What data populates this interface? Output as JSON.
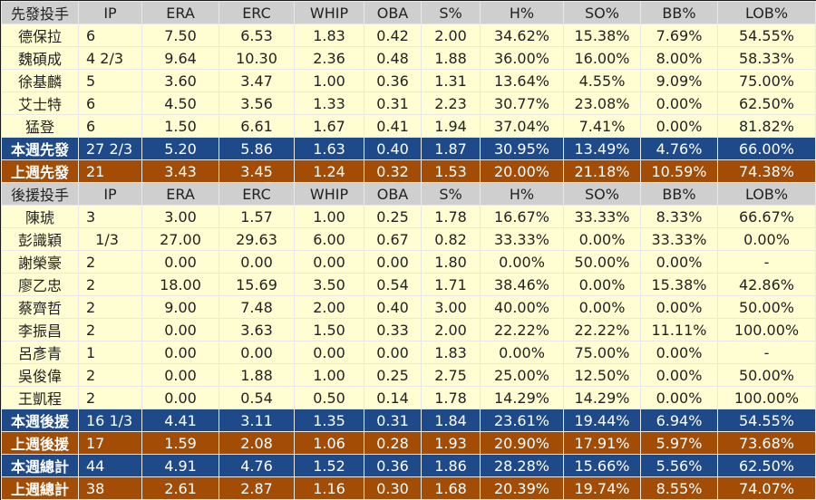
{
  "colors": {
    "header": "#cfcfcf",
    "row": "#fffed2",
    "this_week": "#1f4a8a",
    "last_week": "#a24c05"
  },
  "columns": [
    "IP",
    "ERA",
    "ERC",
    "WHIP",
    "OBA",
    "S%",
    "H%",
    "SO%",
    "BB%",
    "LOB%"
  ],
  "sections": [
    {
      "header": "先發投手",
      "rows": [
        {
          "type": "row",
          "cells": [
            "德保拉",
            "6",
            "7.50",
            "6.53",
            "1.83",
            "0.42",
            "2.00",
            "34.62%",
            "15.38%",
            "7.69%",
            "54.55%"
          ]
        },
        {
          "type": "row",
          "cells": [
            "魏碩成",
            "4 2/3",
            "9.64",
            "10.30",
            "2.36",
            "0.48",
            "1.88",
            "36.00%",
            "16.00%",
            "8.00%",
            "58.33%"
          ]
        },
        {
          "type": "row",
          "cells": [
            "徐基麟",
            "5",
            "3.60",
            "3.47",
            "1.00",
            "0.36",
            "1.31",
            "13.64%",
            "4.55%",
            "9.09%",
            "75.00%"
          ]
        },
        {
          "type": "row",
          "cells": [
            "艾士特",
            "6",
            "4.50",
            "3.56",
            "1.33",
            "0.31",
            "2.23",
            "30.77%",
            "23.08%",
            "0.00%",
            "62.50%"
          ]
        },
        {
          "type": "row",
          "cells": [
            "猛登",
            "6",
            "1.50",
            "6.61",
            "1.67",
            "0.41",
            "1.94",
            "37.04%",
            "7.41%",
            "0.00%",
            "81.82%"
          ]
        },
        {
          "type": "cur",
          "cells": [
            "本週先發",
            "27 2/3",
            "5.20",
            "5.86",
            "1.63",
            "0.40",
            "1.87",
            "30.95%",
            "13.49%",
            "4.76%",
            "66.00%"
          ]
        },
        {
          "type": "prev",
          "cells": [
            "上週先發",
            "21",
            "3.43",
            "3.45",
            "1.24",
            "0.32",
            "1.53",
            "20.00%",
            "21.18%",
            "10.59%",
            "74.38%"
          ]
        }
      ]
    },
    {
      "header": "後援投手",
      "rows": [
        {
          "type": "row",
          "cells": [
            "陳琥",
            "3",
            "3.00",
            "1.57",
            "1.00",
            "0.25",
            "1.78",
            "16.67%",
            "33.33%",
            "8.33%",
            "66.67%"
          ]
        },
        {
          "type": "row",
          "cells": [
            "彭識穎",
            "  1/3",
            "27.00",
            "29.63",
            "6.00",
            "0.67",
            "0.82",
            "33.33%",
            "0.00%",
            "33.33%",
            "0.00%"
          ]
        },
        {
          "type": "row",
          "cells": [
            "謝榮豪",
            "2",
            "0.00",
            "0.00",
            "0.00",
            "0.00",
            "1.80",
            "0.00%",
            "50.00%",
            "0.00%",
            "-"
          ]
        },
        {
          "type": "row",
          "cells": [
            "廖乙忠",
            "2",
            "18.00",
            "15.69",
            "3.50",
            "0.54",
            "1.71",
            "38.46%",
            "0.00%",
            "15.38%",
            "42.86%"
          ]
        },
        {
          "type": "row",
          "cells": [
            "蔡齊哲",
            "2",
            "9.00",
            "7.48",
            "2.00",
            "0.40",
            "3.00",
            "40.00%",
            "0.00%",
            "0.00%",
            "50.00%"
          ]
        },
        {
          "type": "row",
          "cells": [
            "李振昌",
            "2",
            "0.00",
            "3.63",
            "1.50",
            "0.33",
            "2.00",
            "22.22%",
            "22.22%",
            "11.11%",
            "100.00%"
          ]
        },
        {
          "type": "row",
          "cells": [
            "呂彥青",
            "1",
            "0.00",
            "0.00",
            "0.00",
            "0.00",
            "1.83",
            "0.00%",
            "75.00%",
            "0.00%",
            "-"
          ]
        },
        {
          "type": "row",
          "cells": [
            "吳俊偉",
            "2",
            "0.00",
            "1.88",
            "1.00",
            "0.25",
            "2.75",
            "25.00%",
            "12.50%",
            "0.00%",
            "50.00%"
          ]
        },
        {
          "type": "row",
          "cells": [
            "王凱程",
            "2",
            "0.00",
            "0.54",
            "0.50",
            "0.14",
            "1.78",
            "14.29%",
            "14.29%",
            "0.00%",
            "100.00%"
          ]
        },
        {
          "type": "cur",
          "cells": [
            "本週後援",
            "16 1/3",
            "4.41",
            "3.11",
            "1.35",
            "0.31",
            "1.84",
            "23.61%",
            "19.44%",
            "6.94%",
            "54.55%"
          ]
        },
        {
          "type": "prev",
          "cells": [
            "上週後援",
            "17",
            "1.59",
            "2.08",
            "1.06",
            "0.28",
            "1.93",
            "20.90%",
            "17.91%",
            "5.97%",
            "73.68%"
          ]
        },
        {
          "type": "cur",
          "cells": [
            "本週總計",
            "44",
            "4.91",
            "4.76",
            "1.52",
            "0.36",
            "1.86",
            "28.28%",
            "15.66%",
            "5.56%",
            "62.50%"
          ]
        },
        {
          "type": "prev",
          "cells": [
            "上週總計",
            "38",
            "2.61",
            "2.87",
            "1.16",
            "0.30",
            "1.68",
            "20.39%",
            "19.74%",
            "8.55%",
            "74.07%"
          ]
        }
      ]
    }
  ]
}
